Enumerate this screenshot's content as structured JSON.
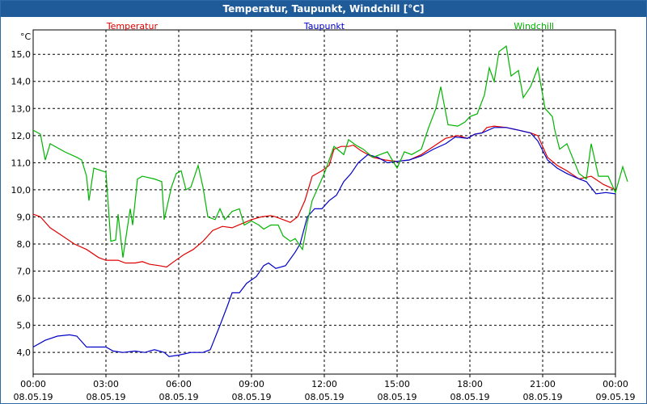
{
  "window": {
    "title": "Temperatur, Taupunkt, Windchill [°C]"
  },
  "chart_data": {
    "type": "line",
    "title": "Temperatur, Taupunkt, Windchill [°C]",
    "ylabel": "°C",
    "xlabel": "",
    "ylim": [
      3.2,
      15.9
    ],
    "xlim": [
      0,
      24
    ],
    "grid": true,
    "legend_position": "top",
    "y_ticks": [
      {
        "value": 4.0,
        "label": "4,0"
      },
      {
        "value": 5.0,
        "label": "5,0"
      },
      {
        "value": 6.0,
        "label": "6,0"
      },
      {
        "value": 7.0,
        "label": "7,0"
      },
      {
        "value": 8.0,
        "label": "8,0"
      },
      {
        "value": 9.0,
        "label": "9,0"
      },
      {
        "value": 10.0,
        "label": "10,0"
      },
      {
        "value": 11.0,
        "label": "11,0"
      },
      {
        "value": 12.0,
        "label": "12,0"
      },
      {
        "value": 13.0,
        "label": "13,0"
      },
      {
        "value": 14.0,
        "label": "14,0"
      },
      {
        "value": 15.0,
        "label": "15,0"
      }
    ],
    "x_ticks": [
      {
        "value": 0,
        "time": "00:00",
        "date": "08.05.19"
      },
      {
        "value": 3,
        "time": "03:00",
        "date": "08.05.19"
      },
      {
        "value": 6,
        "time": "06:00",
        "date": "08.05.19"
      },
      {
        "value": 9,
        "time": "09:00",
        "date": "08.05.19"
      },
      {
        "value": 12,
        "time": "12:00",
        "date": "08.05.19"
      },
      {
        "value": 15,
        "time": "15:00",
        "date": "08.05.19"
      },
      {
        "value": 18,
        "time": "18:00",
        "date": "08.05.19"
      },
      {
        "value": 21,
        "time": "21:00",
        "date": "08.05.19"
      },
      {
        "value": 24,
        "time": "00:00",
        "date": "09.05.19"
      }
    ],
    "series": [
      {
        "name": "Temperatur",
        "color": "#e00000",
        "points": [
          [
            0,
            9.1
          ],
          [
            0.3,
            9.0
          ],
          [
            0.7,
            8.6
          ],
          [
            1.2,
            8.3
          ],
          [
            1.7,
            8.0
          ],
          [
            2.2,
            7.8
          ],
          [
            2.7,
            7.5
          ],
          [
            3.0,
            7.4
          ],
          [
            3.5,
            7.4
          ],
          [
            3.8,
            7.3
          ],
          [
            4.2,
            7.3
          ],
          [
            4.5,
            7.35
          ],
          [
            4.8,
            7.25
          ],
          [
            5.2,
            7.2
          ],
          [
            5.5,
            7.15
          ],
          [
            5.8,
            7.35
          ],
          [
            6.2,
            7.6
          ],
          [
            6.6,
            7.8
          ],
          [
            7.0,
            8.1
          ],
          [
            7.4,
            8.5
          ],
          [
            7.8,
            8.65
          ],
          [
            8.2,
            8.6
          ],
          [
            8.6,
            8.75
          ],
          [
            9.0,
            8.9
          ],
          [
            9.4,
            9.0
          ],
          [
            9.8,
            9.05
          ],
          [
            10.0,
            9.0
          ],
          [
            10.3,
            8.9
          ],
          [
            10.6,
            8.8
          ],
          [
            10.9,
            9.0
          ],
          [
            11.2,
            9.6
          ],
          [
            11.5,
            10.5
          ],
          [
            11.9,
            10.7
          ],
          [
            12.2,
            10.9
          ],
          [
            12.4,
            11.5
          ],
          [
            12.7,
            11.6
          ],
          [
            13.0,
            11.6
          ],
          [
            13.2,
            11.65
          ],
          [
            13.5,
            11.45
          ],
          [
            14.0,
            11.2
          ],
          [
            14.5,
            11.1
          ],
          [
            15.0,
            11.05
          ],
          [
            15.5,
            11.1
          ],
          [
            16.0,
            11.3
          ],
          [
            16.5,
            11.6
          ],
          [
            17.0,
            11.9
          ],
          [
            17.5,
            12.0
          ],
          [
            17.9,
            11.9
          ],
          [
            18.2,
            12.05
          ],
          [
            18.5,
            12.1
          ],
          [
            18.7,
            12.3
          ],
          [
            19.0,
            12.35
          ],
          [
            19.5,
            12.3
          ],
          [
            20.0,
            12.2
          ],
          [
            20.5,
            12.1
          ],
          [
            20.8,
            12.0
          ],
          [
            21.2,
            11.2
          ],
          [
            21.6,
            10.9
          ],
          [
            22.0,
            10.7
          ],
          [
            22.5,
            10.4
          ],
          [
            23.0,
            10.5
          ],
          [
            23.5,
            10.2
          ],
          [
            24.0,
            10.0
          ]
        ]
      },
      {
        "name": "Taupunkt",
        "color": "#0000c8",
        "points": [
          [
            0,
            4.2
          ],
          [
            0.5,
            4.45
          ],
          [
            1.0,
            4.6
          ],
          [
            1.5,
            4.65
          ],
          [
            1.8,
            4.6
          ],
          [
            2.2,
            4.2
          ],
          [
            2.6,
            4.2
          ],
          [
            3.0,
            4.2
          ],
          [
            3.3,
            4.05
          ],
          [
            3.7,
            4.0
          ],
          [
            4.2,
            4.05
          ],
          [
            4.6,
            4.0
          ],
          [
            5.0,
            4.1
          ],
          [
            5.4,
            4.0
          ],
          [
            5.6,
            3.85
          ],
          [
            6.0,
            3.9
          ],
          [
            6.5,
            4.0
          ],
          [
            7.0,
            4.0
          ],
          [
            7.3,
            4.1
          ],
          [
            7.7,
            5.0
          ],
          [
            8.0,
            5.7
          ],
          [
            8.2,
            6.2
          ],
          [
            8.5,
            6.2
          ],
          [
            8.8,
            6.55
          ],
          [
            9.2,
            6.8
          ],
          [
            9.5,
            7.2
          ],
          [
            9.7,
            7.3
          ],
          [
            10.0,
            7.1
          ],
          [
            10.4,
            7.2
          ],
          [
            10.8,
            7.7
          ],
          [
            11.0,
            8.0
          ],
          [
            11.3,
            9.0
          ],
          [
            11.6,
            9.3
          ],
          [
            11.9,
            9.3
          ],
          [
            12.2,
            9.6
          ],
          [
            12.5,
            9.8
          ],
          [
            12.8,
            10.3
          ],
          [
            13.1,
            10.6
          ],
          [
            13.4,
            11.0
          ],
          [
            13.8,
            11.3
          ],
          [
            14.2,
            11.2
          ],
          [
            14.6,
            11.0
          ],
          [
            15.0,
            11.05
          ],
          [
            15.5,
            11.1
          ],
          [
            16.0,
            11.25
          ],
          [
            16.5,
            11.5
          ],
          [
            17.0,
            11.7
          ],
          [
            17.4,
            11.95
          ],
          [
            17.9,
            11.9
          ],
          [
            18.2,
            12.05
          ],
          [
            18.5,
            12.1
          ],
          [
            19.0,
            12.3
          ],
          [
            19.5,
            12.3
          ],
          [
            20.0,
            12.2
          ],
          [
            20.5,
            12.1
          ],
          [
            20.8,
            11.8
          ],
          [
            21.2,
            11.1
          ],
          [
            21.6,
            10.8
          ],
          [
            22.0,
            10.6
          ],
          [
            22.5,
            10.4
          ],
          [
            22.8,
            10.3
          ],
          [
            23.2,
            9.85
          ],
          [
            23.6,
            9.9
          ],
          [
            24.0,
            9.85
          ]
        ]
      },
      {
        "name": "Windchill",
        "color": "#00b400",
        "points": [
          [
            0,
            12.2
          ],
          [
            0.3,
            12.05
          ],
          [
            0.5,
            11.1
          ],
          [
            0.7,
            11.7
          ],
          [
            1.0,
            11.55
          ],
          [
            1.3,
            11.4
          ],
          [
            1.8,
            11.2
          ],
          [
            2.0,
            11.1
          ],
          [
            2.2,
            10.5
          ],
          [
            2.3,
            9.6
          ],
          [
            2.5,
            10.8
          ],
          [
            3.0,
            10.65
          ],
          [
            3.2,
            8.1
          ],
          [
            3.4,
            8.15
          ],
          [
            3.5,
            9.1
          ],
          [
            3.7,
            7.5
          ],
          [
            4.0,
            9.3
          ],
          [
            4.1,
            8.7
          ],
          [
            4.3,
            10.4
          ],
          [
            4.5,
            10.5
          ],
          [
            5.0,
            10.4
          ],
          [
            5.3,
            10.3
          ],
          [
            5.4,
            8.9
          ],
          [
            5.7,
            10.1
          ],
          [
            5.9,
            10.6
          ],
          [
            6.1,
            10.7
          ],
          [
            6.3,
            10.0
          ],
          [
            6.5,
            10.1
          ],
          [
            6.8,
            10.9
          ],
          [
            7.0,
            10.1
          ],
          [
            7.2,
            9.0
          ],
          [
            7.5,
            8.9
          ],
          [
            7.7,
            9.3
          ],
          [
            7.9,
            8.9
          ],
          [
            8.2,
            9.2
          ],
          [
            8.5,
            9.3
          ],
          [
            8.7,
            8.7
          ],
          [
            9.0,
            8.85
          ],
          [
            9.3,
            8.7
          ],
          [
            9.5,
            8.55
          ],
          [
            9.8,
            8.7
          ],
          [
            10.1,
            8.7
          ],
          [
            10.3,
            8.3
          ],
          [
            10.6,
            8.1
          ],
          [
            10.8,
            8.2
          ],
          [
            11.1,
            7.8
          ],
          [
            11.3,
            8.8
          ],
          [
            11.5,
            9.6
          ],
          [
            12.0,
            10.6
          ],
          [
            12.4,
            11.6
          ],
          [
            12.8,
            11.3
          ],
          [
            13.0,
            11.85
          ],
          [
            13.3,
            11.65
          ],
          [
            13.6,
            11.5
          ],
          [
            14.0,
            11.2
          ],
          [
            14.3,
            11.3
          ],
          [
            14.6,
            11.4
          ],
          [
            15.0,
            10.8
          ],
          [
            15.3,
            11.4
          ],
          [
            15.6,
            11.3
          ],
          [
            16.0,
            11.5
          ],
          [
            16.3,
            12.3
          ],
          [
            16.6,
            13.0
          ],
          [
            16.8,
            13.8
          ],
          [
            17.1,
            12.4
          ],
          [
            17.5,
            12.35
          ],
          [
            17.8,
            12.5
          ],
          [
            18.0,
            12.7
          ],
          [
            18.3,
            12.8
          ],
          [
            18.6,
            13.5
          ],
          [
            18.8,
            14.5
          ],
          [
            19.0,
            14.0
          ],
          [
            19.2,
            15.1
          ],
          [
            19.5,
            15.3
          ],
          [
            19.7,
            14.2
          ],
          [
            20.0,
            14.4
          ],
          [
            20.2,
            13.4
          ],
          [
            20.5,
            13.8
          ],
          [
            20.8,
            14.5
          ],
          [
            21.1,
            13.0
          ],
          [
            21.4,
            12.7
          ],
          [
            21.5,
            12.2
          ],
          [
            21.7,
            11.5
          ],
          [
            22.0,
            11.7
          ],
          [
            22.5,
            10.6
          ],
          [
            22.8,
            10.4
          ],
          [
            23.0,
            11.7
          ],
          [
            23.3,
            10.5
          ],
          [
            23.7,
            10.5
          ],
          [
            24.0,
            9.9
          ],
          [
            24.3,
            10.85
          ],
          [
            24.5,
            10.3
          ]
        ]
      }
    ]
  }
}
